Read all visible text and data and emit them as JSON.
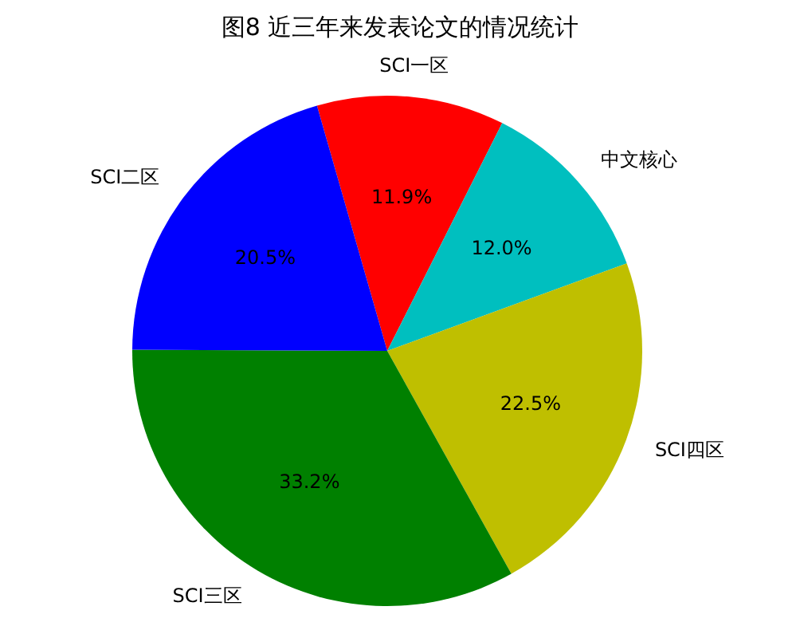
{
  "chart_data": {
    "type": "pie",
    "title": "图8  近三年来发表论文的情况统计",
    "categories": [
      "SCI一区",
      "中文核心",
      "SCI四区",
      "SCI三区",
      "SCI二区"
    ],
    "values": [
      11.9,
      12.0,
      22.5,
      33.2,
      20.5
    ],
    "colors": [
      "#ff0000",
      "#00bfbf",
      "#bfbf00",
      "#008000",
      "#0000ff"
    ],
    "value_labels": [
      "11.9%",
      "12.0%",
      "22.5%",
      "33.2%",
      "20.5%"
    ]
  }
}
